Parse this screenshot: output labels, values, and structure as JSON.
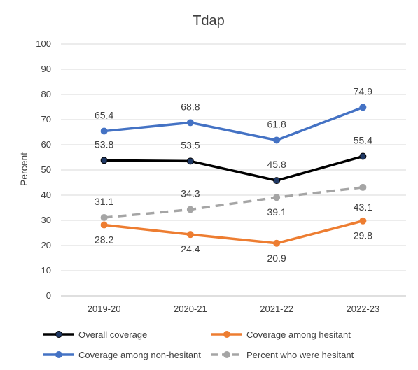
{
  "chart_data": {
    "type": "line",
    "title": "Tdap",
    "ylabel": "Percent",
    "xlabel": "",
    "ylim": [
      0,
      100
    ],
    "yticks": [
      0,
      10,
      20,
      30,
      40,
      50,
      60,
      70,
      80,
      90,
      100
    ],
    "grid": true,
    "legend_position": "bottom",
    "categories": [
      "2019-20",
      "2020-21",
      "2021-22",
      "2022-23"
    ],
    "series": [
      {
        "name": "Overall coverage",
        "values": [
          53.8,
          53.5,
          45.8,
          55.4
        ],
        "color": "#000000",
        "marker_color": "#1f3864",
        "dashed": false
      },
      {
        "name": "Coverage among hesitant",
        "values": [
          28.2,
          24.4,
          20.9,
          29.8
        ],
        "color": "#ed7d31",
        "marker_color": "#ed7d31",
        "dashed": false
      },
      {
        "name": "Coverage among non-hesitant",
        "values": [
          65.4,
          68.8,
          61.8,
          74.9
        ],
        "color": "#4472c4",
        "marker_color": "#4472c4",
        "dashed": false
      },
      {
        "name": "Percent who were hesitant",
        "values": [
          31.1,
          34.3,
          39.1,
          43.1
        ],
        "color": "#a5a5a5",
        "marker_color": "#a5a5a5",
        "dashed": true
      }
    ],
    "data_labels": [
      [
        "53.8",
        "53.5",
        "45.8",
        "55.4"
      ],
      [
        "28.2",
        "24.4",
        "20.9",
        "29.8"
      ],
      [
        "65.4",
        "68.8",
        "61.8",
        "74.9"
      ],
      [
        "31.1",
        "34.3",
        "39.1",
        "43.1"
      ]
    ]
  }
}
